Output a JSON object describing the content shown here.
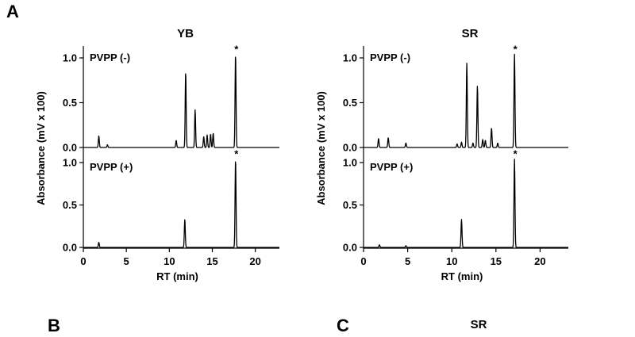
{
  "figure": {
    "panel_a": "A",
    "panel_b": "B",
    "panel_c": "C",
    "panel_c_title": "SR"
  },
  "chart_data": [
    {
      "type": "line",
      "title": "YB",
      "ylabel": "Absorbance (mV x 100)",
      "xlabel": "RT (min)",
      "xlim": [
        0,
        22.8
      ],
      "xticks": [
        "0",
        "5",
        "10",
        "15",
        "20"
      ],
      "xtick_values": [
        0,
        5,
        10,
        15,
        20
      ],
      "ylim": [
        0,
        1.15
      ],
      "yticks": [
        "0.0",
        "0.5",
        "1.0"
      ],
      "ytick_values": [
        0,
        0.5,
        1.0
      ],
      "subplots": [
        {
          "label": "PVPP (-)",
          "annotation": "*",
          "annotation_x": 17.7,
          "peaks": [
            {
              "rt": 1.8,
              "height": 0.13
            },
            {
              "rt": 2.8,
              "height": 0.03
            },
            {
              "rt": 10.8,
              "height": 0.08
            },
            {
              "rt": 11.9,
              "height": 0.84
            },
            {
              "rt": 13.0,
              "height": 0.42
            },
            {
              "rt": 14.0,
              "height": 0.12
            },
            {
              "rt": 14.4,
              "height": 0.14
            },
            {
              "rt": 14.8,
              "height": 0.15
            },
            {
              "rt": 15.1,
              "height": 0.16
            },
            {
              "rt": 17.7,
              "height": 1.04
            }
          ]
        },
        {
          "label": "PVPP (+)",
          "annotation": "*",
          "annotation_x": 17.7,
          "peaks": [
            {
              "rt": 1.8,
              "height": 0.06
            },
            {
              "rt": 11.8,
              "height": 0.33
            },
            {
              "rt": 17.7,
              "height": 1.04
            }
          ]
        }
      ]
    },
    {
      "type": "line",
      "title": "SR",
      "ylabel": "Absorbance (mV x 100)",
      "xlabel": "RT (min)",
      "xlim": [
        0,
        23.2
      ],
      "xticks": [
        "0",
        "5",
        "10",
        "15",
        "20"
      ],
      "xtick_values": [
        0,
        5,
        10,
        15,
        20
      ],
      "ylim": [
        0,
        1.15
      ],
      "yticks": [
        "0.0",
        "0.5",
        "1.0"
      ],
      "ytick_values": [
        0,
        0.5,
        1.0
      ],
      "subplots": [
        {
          "label": "PVPP (-)",
          "annotation": "*",
          "annotation_x": 17.1,
          "peaks": [
            {
              "rt": 1.7,
              "height": 0.1
            },
            {
              "rt": 2.8,
              "height": 0.11
            },
            {
              "rt": 4.8,
              "height": 0.05
            },
            {
              "rt": 10.6,
              "height": 0.04
            },
            {
              "rt": 11.1,
              "height": 0.06
            },
            {
              "rt": 11.7,
              "height": 0.94
            },
            {
              "rt": 12.4,
              "height": 0.05
            },
            {
              "rt": 12.9,
              "height": 0.69
            },
            {
              "rt": 13.5,
              "height": 0.09
            },
            {
              "rt": 13.8,
              "height": 0.08
            },
            {
              "rt": 14.5,
              "height": 0.22
            },
            {
              "rt": 15.2,
              "height": 0.05
            },
            {
              "rt": 17.1,
              "height": 1.04
            }
          ]
        },
        {
          "label": "PVPP (+)",
          "annotation": "*",
          "annotation_x": 17.1,
          "peaks": [
            {
              "rt": 1.8,
              "height": 0.03
            },
            {
              "rt": 4.8,
              "height": 0.02
            },
            {
              "rt": 11.1,
              "height": 0.33
            },
            {
              "rt": 17.1,
              "height": 1.04
            }
          ]
        }
      ]
    }
  ]
}
